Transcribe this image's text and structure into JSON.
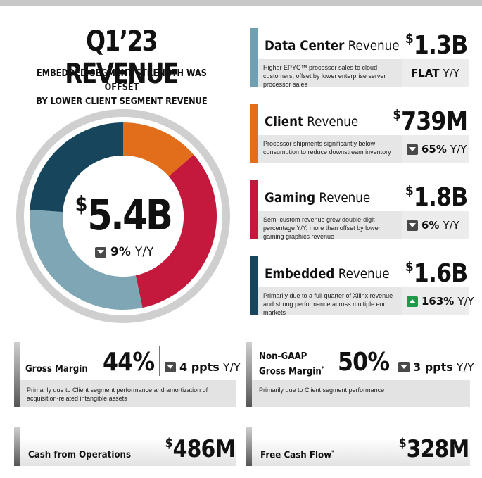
{
  "header": {
    "title": "Q1’23 REVENUE",
    "subtitle_line1": "EMBEDDED SEGMENT STRENGTH WAS OFFSET",
    "subtitle_line2": "BY LOWER CLIENT SEGMENT REVENUE"
  },
  "total": {
    "currency": "$",
    "value": "5.4B",
    "change_pct": "9%",
    "change_unit": "Y/Y",
    "direction": "down"
  },
  "chart_data": {
    "type": "pie",
    "categories": [
      "Client",
      "Gaming",
      "Embedded",
      "Data Center"
    ],
    "values": [
      0.739,
      1.8,
      1.6,
      1.3
    ],
    "unit": "$B",
    "colors": [
      "#e26d1a",
      "#c4183c",
      "#7fa6b4",
      "#17465c"
    ]
  },
  "segments": [
    {
      "name_bold": "Data Center",
      "name_rest": " Revenue",
      "currency": "$",
      "value": "1.3B",
      "description": "Higher EPYC™ processor sales to cloud customers, offset by lower enterprise server processor sales",
      "change_flat": "FLAT",
      "change_unit": "Y/Y",
      "direction": "flat",
      "color": "#6f9fb0"
    },
    {
      "name_bold": "Client",
      "name_rest": " Revenue",
      "currency": "$",
      "value": "739M",
      "description": "Processor shipments significantly below consumption to reduce downstream inventory",
      "change_pct": "65%",
      "change_unit": "Y/Y",
      "direction": "down",
      "color": "#e26d1a"
    },
    {
      "name_bold": "Gaming",
      "name_rest": " Revenue",
      "currency": "$",
      "value": "1.8B",
      "description": "Semi-custom revenue grew double-digit percentage Y/Y, more than offset by lower gaming graphics revenue",
      "change_pct": "6%",
      "change_unit": "Y/Y",
      "direction": "down",
      "color": "#c4183c"
    },
    {
      "name_bold": "Embedded",
      "name_rest": " Revenue",
      "currency": "$",
      "value": "1.6B",
      "description": "Primarily due to a full quarter of Xilinx revenue and strong performance across multiple end markets",
      "change_pct": "163%",
      "change_unit": "Y/Y",
      "direction": "up",
      "color": "#17465c"
    }
  ],
  "gross_margin": {
    "label": "Gross Margin",
    "value": "44%",
    "change": "4 ppts",
    "change_unit": "Y/Y",
    "direction": "down",
    "description": "Primarily due to Client segment performance and amortization of acquisition-related intangible assets"
  },
  "non_gaap_margin": {
    "label_line1": "Non-GAAP",
    "label_line2": "Gross Margin",
    "footnote": "*",
    "value": "50%",
    "change": "3 ppts",
    "change_unit": "Y/Y",
    "direction": "down",
    "description": "Primarily due to Client segment performance"
  },
  "cash_ops": {
    "label": "Cash from Operations",
    "currency": "$",
    "value": "486M"
  },
  "free_cash": {
    "label": "Free Cash Flow",
    "footnote": "*",
    "currency": "$",
    "value": "328M"
  }
}
